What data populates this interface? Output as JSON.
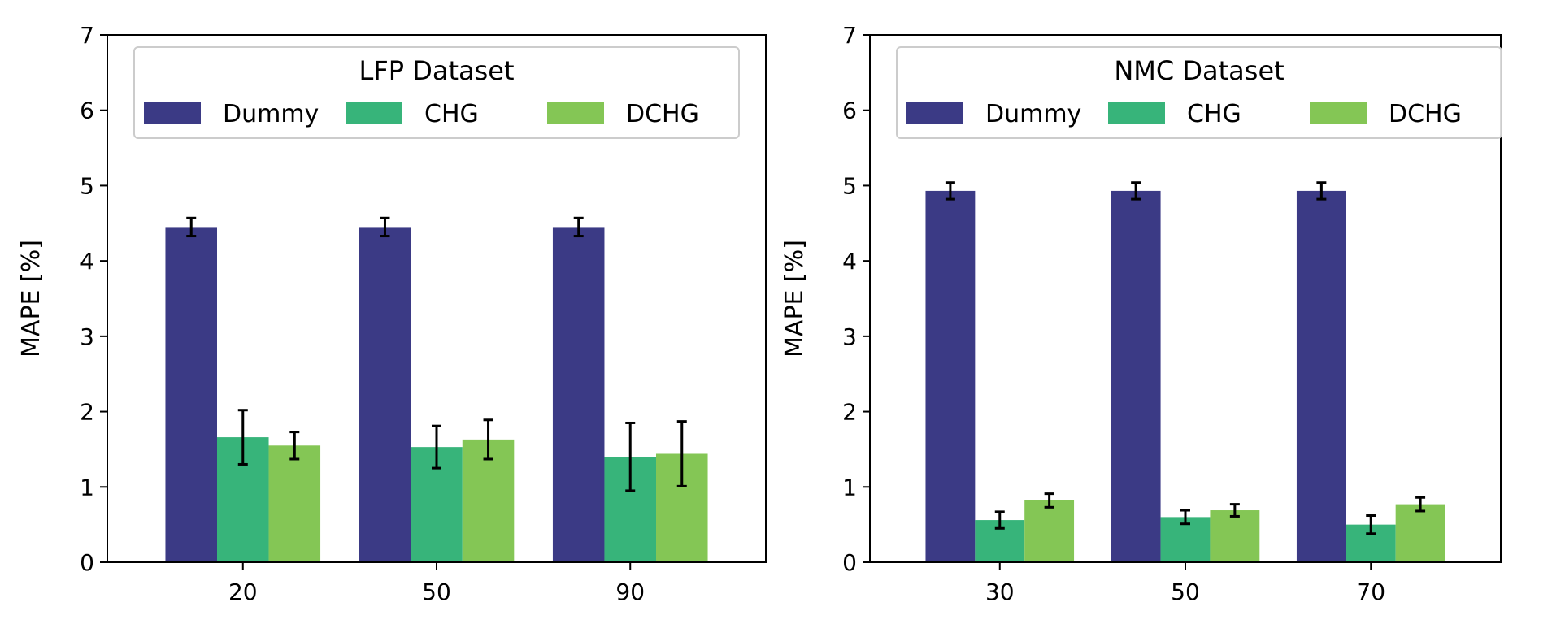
{
  "chart_data": [
    {
      "type": "bar",
      "categories": [
        "20",
        "50",
        "90"
      ],
      "ylabel": "MAPE [%]",
      "xlabel": "",
      "ylim": [
        0,
        7
      ],
      "yticks": [
        "0",
        "1",
        "2",
        "3",
        "4",
        "5",
        "6",
        "7"
      ],
      "legend": {
        "title": "LFP Dataset",
        "placement": "top-center"
      },
      "series": [
        {
          "name": "Dummy",
          "color": "#3b3a85",
          "values": [
            4.45,
            4.45,
            4.45
          ],
          "errors": [
            0.12,
            0.12,
            0.12
          ]
        },
        {
          "name": "CHG",
          "color": "#37b47a",
          "values": [
            1.66,
            1.53,
            1.4
          ],
          "errors": [
            0.36,
            0.28,
            0.45
          ]
        },
        {
          "name": "DCHG",
          "color": "#84c655",
          "values": [
            1.55,
            1.63,
            1.44
          ],
          "errors": [
            0.18,
            0.26,
            0.43
          ]
        }
      ]
    },
    {
      "type": "bar",
      "categories": [
        "30",
        "50",
        "70"
      ],
      "ylabel": "MAPE [%]",
      "xlabel": "",
      "ylim": [
        0,
        7
      ],
      "yticks": [
        "0",
        "1",
        "2",
        "3",
        "4",
        "5",
        "6",
        "7"
      ],
      "legend": {
        "title": "NMC Dataset",
        "placement": "top-center"
      },
      "series": [
        {
          "name": "Dummy",
          "color": "#3b3a85",
          "values": [
            4.93,
            4.93,
            4.93
          ],
          "errors": [
            0.11,
            0.11,
            0.11
          ]
        },
        {
          "name": "CHG",
          "color": "#37b47a",
          "values": [
            0.56,
            0.6,
            0.5
          ],
          "errors": [
            0.11,
            0.09,
            0.12
          ]
        },
        {
          "name": "DCHG",
          "color": "#84c655",
          "values": [
            0.82,
            0.69,
            0.77
          ],
          "errors": [
            0.09,
            0.08,
            0.09
          ]
        }
      ]
    }
  ]
}
